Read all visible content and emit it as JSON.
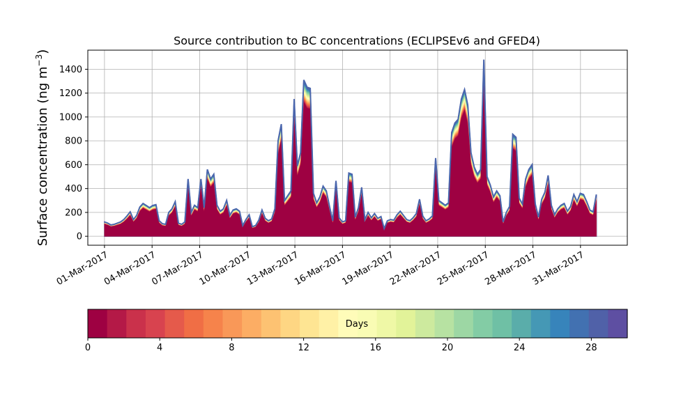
{
  "chart_data": {
    "type": "area",
    "title": "Source contribution to BC concentrations (ECLIPSEv6 and GFED4)",
    "ylabel_main": "Surface concentration (ng m",
    "ylabel_sup": "−3",
    "ylabel_close": ")",
    "xlabel": "",
    "ylim": [
      -75,
      1560
    ],
    "yticks": [
      0,
      200,
      400,
      600,
      800,
      1000,
      1200,
      1400
    ],
    "xrange_days": [
      -1.05,
      32.95
    ],
    "x_tick_labels": [
      "01-Mar-2017",
      "04-Mar-2017",
      "07-Mar-2017",
      "10-Mar-2017",
      "13-Mar-2017",
      "16-Mar-2017",
      "19-Mar-2017",
      "22-Mar-2017",
      "25-Mar-2017",
      "28-Mar-2017",
      "31-Mar-2017"
    ],
    "grid": true,
    "total_concentration": {
      "date_start": "01-Mar-2017",
      "date_end": "01-Apr-2017",
      "values": [
        120,
        110,
        95,
        100,
        110,
        120,
        140,
        170,
        205,
        140,
        175,
        245,
        275,
        258,
        240,
        258,
        265,
        130,
        105,
        100,
        200,
        230,
        290,
        110,
        100,
        120,
        480,
        200,
        260,
        240,
        480,
        240,
        560,
        480,
        520,
        260,
        210,
        230,
        300,
        175,
        220,
        230,
        210,
        90,
        140,
        180,
        80,
        90,
        135,
        220,
        150,
        130,
        145,
        230,
        800,
        940,
        300,
        340,
        380,
        1150,
        590,
        700,
        1310,
        1250,
        1240,
        360,
        280,
        330,
        420,
        380,
        250,
        130,
        465,
        155,
        120,
        130,
        530,
        520,
        160,
        240,
        410,
        140,
        200,
        155,
        190,
        150,
        165,
        65,
        130,
        140,
        135,
        180,
        210,
        175,
        140,
        130,
        155,
        190,
        310,
        170,
        130,
        145,
        170,
        655,
        300,
        280,
        260,
        280,
        870,
        950,
        980,
        1150,
        1230,
        1100,
        700,
        580,
        520,
        560,
        1480,
        500,
        430,
        330,
        380,
        340,
        120,
        200,
        250,
        855,
        830,
        320,
        270,
        480,
        560,
        600,
        270,
        160,
        310,
        370,
        510,
        260,
        180,
        230,
        260,
        275,
        210,
        250,
        350,
        290,
        360,
        350,
        290,
        220,
        205,
        350
      ]
    },
    "colorbar": {
      "label": "Days",
      "ticks": [
        0,
        4,
        8,
        12,
        16,
        20,
        24,
        28
      ],
      "range": [
        0,
        30
      ],
      "colors": [
        "#9e0142",
        "#b41947",
        "#ca314b",
        "#d8434f",
        "#e55a4b",
        "#f06e45",
        "#f6834b",
        "#f99858",
        "#fcad64",
        "#fdc272",
        "#fed683",
        "#fee593",
        "#fff1a6",
        "#fffcb9",
        "#f9fcb4",
        "#eff8a6",
        "#e2f399",
        "#cdea9e",
        "#b7e2a2",
        "#9dd7a4",
        "#83cca5",
        "#6fc0a5",
        "#5aadaa",
        "#4598b5",
        "#3784bb",
        "#4271b1",
        "#5061a8",
        "#5e4fa2"
      ]
    }
  }
}
